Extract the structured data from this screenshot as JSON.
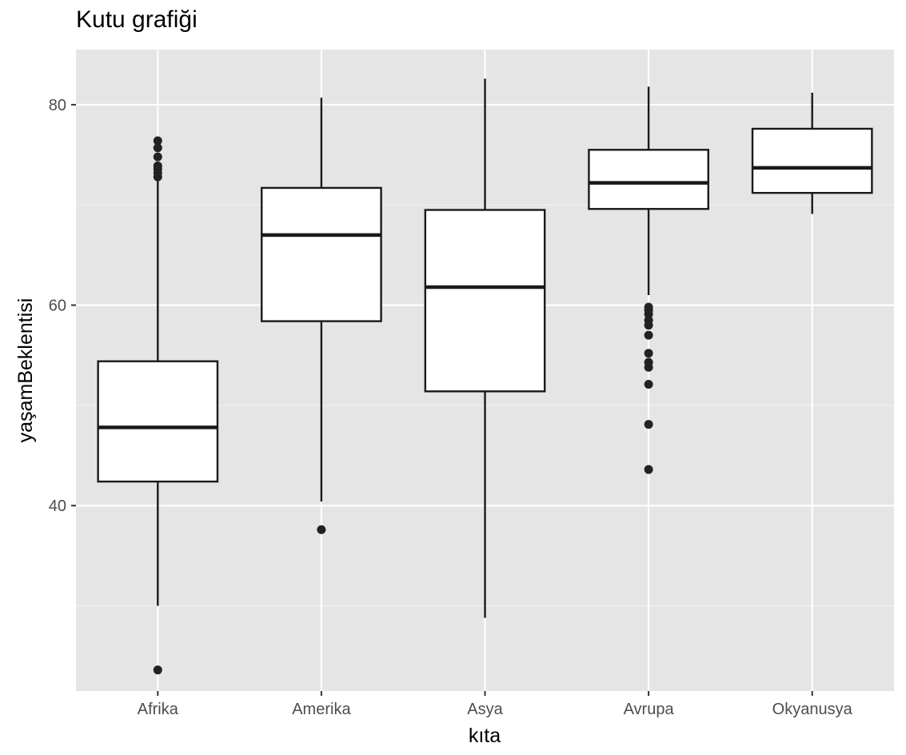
{
  "chart_data": {
    "type": "box",
    "title": "Kutu grafiği",
    "xlabel": "kıta",
    "ylabel": "yaşamBeklentisi",
    "ylim": [
      21.5,
      85.5
    ],
    "yticks": [
      40,
      60,
      80
    ],
    "grid": true,
    "categories": [
      "Afrika",
      "Amerika",
      "Asya",
      "Avrupa",
      "Okyanusya"
    ],
    "boxes": [
      {
        "name": "Afrika",
        "whisker_low": 30.0,
        "q1": 42.4,
        "median": 47.8,
        "q3": 54.4,
        "whisker_high": 72.5,
        "outliers": [
          23.6,
          72.8,
          73.2,
          73.6,
          73.9,
          74.8,
          75.7,
          76.4
        ]
      },
      {
        "name": "Amerika",
        "whisker_low": 40.4,
        "q1": 58.4,
        "median": 67.0,
        "q3": 71.7,
        "whisker_high": 80.7,
        "outliers": [
          37.6
        ]
      },
      {
        "name": "Asya",
        "whisker_low": 28.8,
        "q1": 51.4,
        "median": 61.8,
        "q3": 69.5,
        "whisker_high": 82.6,
        "outliers": []
      },
      {
        "name": "Avrupa",
        "whisker_low": 61.0,
        "q1": 69.6,
        "median": 72.2,
        "q3": 75.5,
        "whisker_high": 81.8,
        "outliers": [
          43.6,
          48.1,
          52.1,
          53.8,
          54.3,
          55.2,
          57.0,
          58.0,
          58.5,
          59.1,
          59.5,
          59.8
        ]
      },
      {
        "name": "Okyanusya",
        "whisker_low": 69.1,
        "q1": 71.2,
        "median": 73.7,
        "q3": 77.6,
        "whisker_high": 81.2,
        "outliers": []
      }
    ]
  }
}
